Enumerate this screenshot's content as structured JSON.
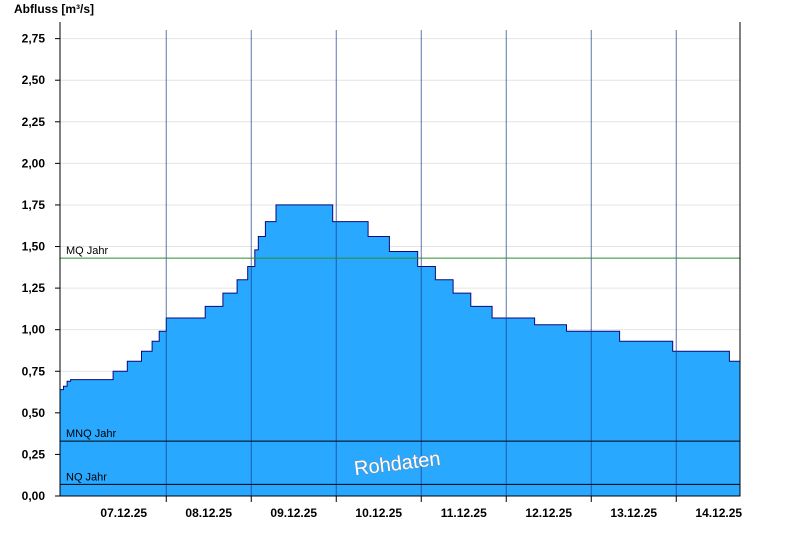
{
  "chart_data": {
    "type": "area",
    "ylabel": "Abfluss [m³/s]",
    "ylim": [
      0,
      2.85
    ],
    "yticks": [
      "0,00",
      "0,25",
      "0,50",
      "0,75",
      "1,00",
      "1,25",
      "1,50",
      "1,75",
      "2,00",
      "2,25",
      "2,50",
      "2,75"
    ],
    "ytick_values": [
      0,
      0.25,
      0.5,
      0.75,
      1.0,
      1.25,
      1.5,
      1.75,
      2.0,
      2.25,
      2.5,
      2.75
    ],
    "xlim": [
      "06.12.25 18:00",
      "14.12.25 18:00"
    ],
    "xticks": [
      "07.12.25",
      "08.12.25",
      "09.12.25",
      "10.12.25",
      "11.12.25",
      "12.12.25",
      "13.12.25",
      "14.12.25"
    ],
    "grid": true,
    "series": [
      {
        "x": [
          "06.12.25 18:00",
          "06.12.25 19:00",
          "06.12.25 20:00",
          "06.12.25 21:00",
          "06.12.25 22:00",
          "07.12.25 09:00",
          "07.12.25 13:00",
          "07.12.25 17:00",
          "07.12.25 20:00",
          "07.12.25 22:00",
          "08.12.25 00:00",
          "08.12.25 03:00",
          "08.12.25 11:00",
          "08.12.25 16:00",
          "08.12.25 20:00",
          "08.12.25 23:00",
          "09.12.25 01:00",
          "09.12.25 02:00",
          "09.12.25 04:00",
          "09.12.25 07:00",
          "09.12.25 12:00",
          "09.12.25 23:00",
          "10.12.25 09:00",
          "10.12.25 15:00",
          "10.12.25 23:00",
          "11.12.25 04:00",
          "11.12.25 09:00",
          "11.12.25 14:00",
          "11.12.25 20:00",
          "12.12.25 01:00",
          "12.12.25 08:00",
          "12.12.25 17:00",
          "12.12.25 19:00",
          "12.12.25 22:00",
          "13.12.25 08:00",
          "13.12.25 13:00",
          "13.12.25 23:00",
          "14.12.25 08:00",
          "14.12.25 13:00",
          "14.12.25 15:00",
          "14.12.25 18:00"
        ],
        "values": [
          0.64,
          0.66,
          0.69,
          0.7,
          0.7,
          0.75,
          0.81,
          0.87,
          0.93,
          0.99,
          1.07,
          1.07,
          1.14,
          1.22,
          1.3,
          1.38,
          1.48,
          1.56,
          1.65,
          1.75,
          1.75,
          1.65,
          1.56,
          1.47,
          1.38,
          1.3,
          1.22,
          1.14,
          1.07,
          1.07,
          1.03,
          0.99,
          0.99,
          0.99,
          0.93,
          0.93,
          0.87,
          0.87,
          0.87,
          0.81,
          0.81
        ]
      }
    ],
    "reference_lines": [
      {
        "label": "MQ Jahr",
        "value": 1.43,
        "color": "#2e8b2e"
      },
      {
        "label": "MNQ Jahr",
        "value": 0.33,
        "color": "#000000"
      },
      {
        "label": "NQ Jahr",
        "value": 0.07,
        "color": "#000000"
      }
    ],
    "annotation": "Rohdaten",
    "colors": {
      "area_fill": "#28a8ff",
      "area_stroke": "#0a0a7a",
      "grid": "#e4e4e4",
      "day_lines": "#1a3a8a"
    }
  }
}
